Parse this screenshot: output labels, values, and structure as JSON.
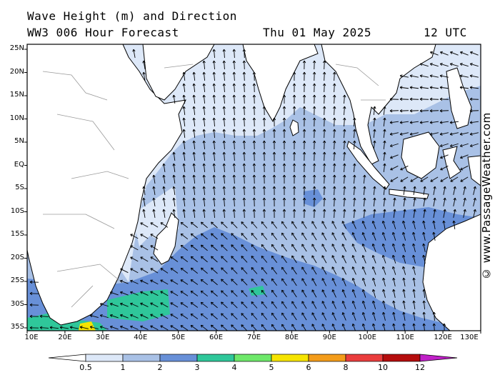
{
  "header": {
    "line1": "Wave Height (m) and Direction",
    "line2_left": "WW3 006 Hour Forecast",
    "line2_date": "Thu 01 May 2025",
    "line2_time": "12 UTC"
  },
  "credit": "© www.PassageWeather.com",
  "latitudes": [
    "25N",
    "20N",
    "15N",
    "10N",
    "5N",
    "EQ",
    "5S",
    "10S",
    "15S",
    "20S",
    "25S",
    "30S",
    "35S"
  ],
  "longitudes": [
    "10E",
    "20E",
    "30E",
    "40E",
    "50E",
    "60E",
    "70E",
    "80E",
    "90E",
    "100E",
    "110E",
    "120E",
    "130E"
  ],
  "colorbar": {
    "labels": [
      "0.5",
      "1",
      "2",
      "3",
      "4",
      "5",
      "6",
      "8",
      "10",
      "12"
    ],
    "colors": [
      "#dde8f8",
      "#a9c1e6",
      "#6890d8",
      "#2fc79a",
      "#6ee86a",
      "#f6e400",
      "#f39c1a",
      "#ea3d3d",
      "#b50d0d",
      "#c020c8"
    ]
  },
  "colors": {
    "land": "#ffffff",
    "wave_lt05": "#dde8f8",
    "wave_1_2": "#a9c1e6",
    "wave_2_3": "#6890d8",
    "wave_3_4": "#2fc79a",
    "wave_5_6": "#f6e400",
    "arrow": "#000000",
    "coast": "#000000",
    "border": "#9a9a9a"
  }
}
